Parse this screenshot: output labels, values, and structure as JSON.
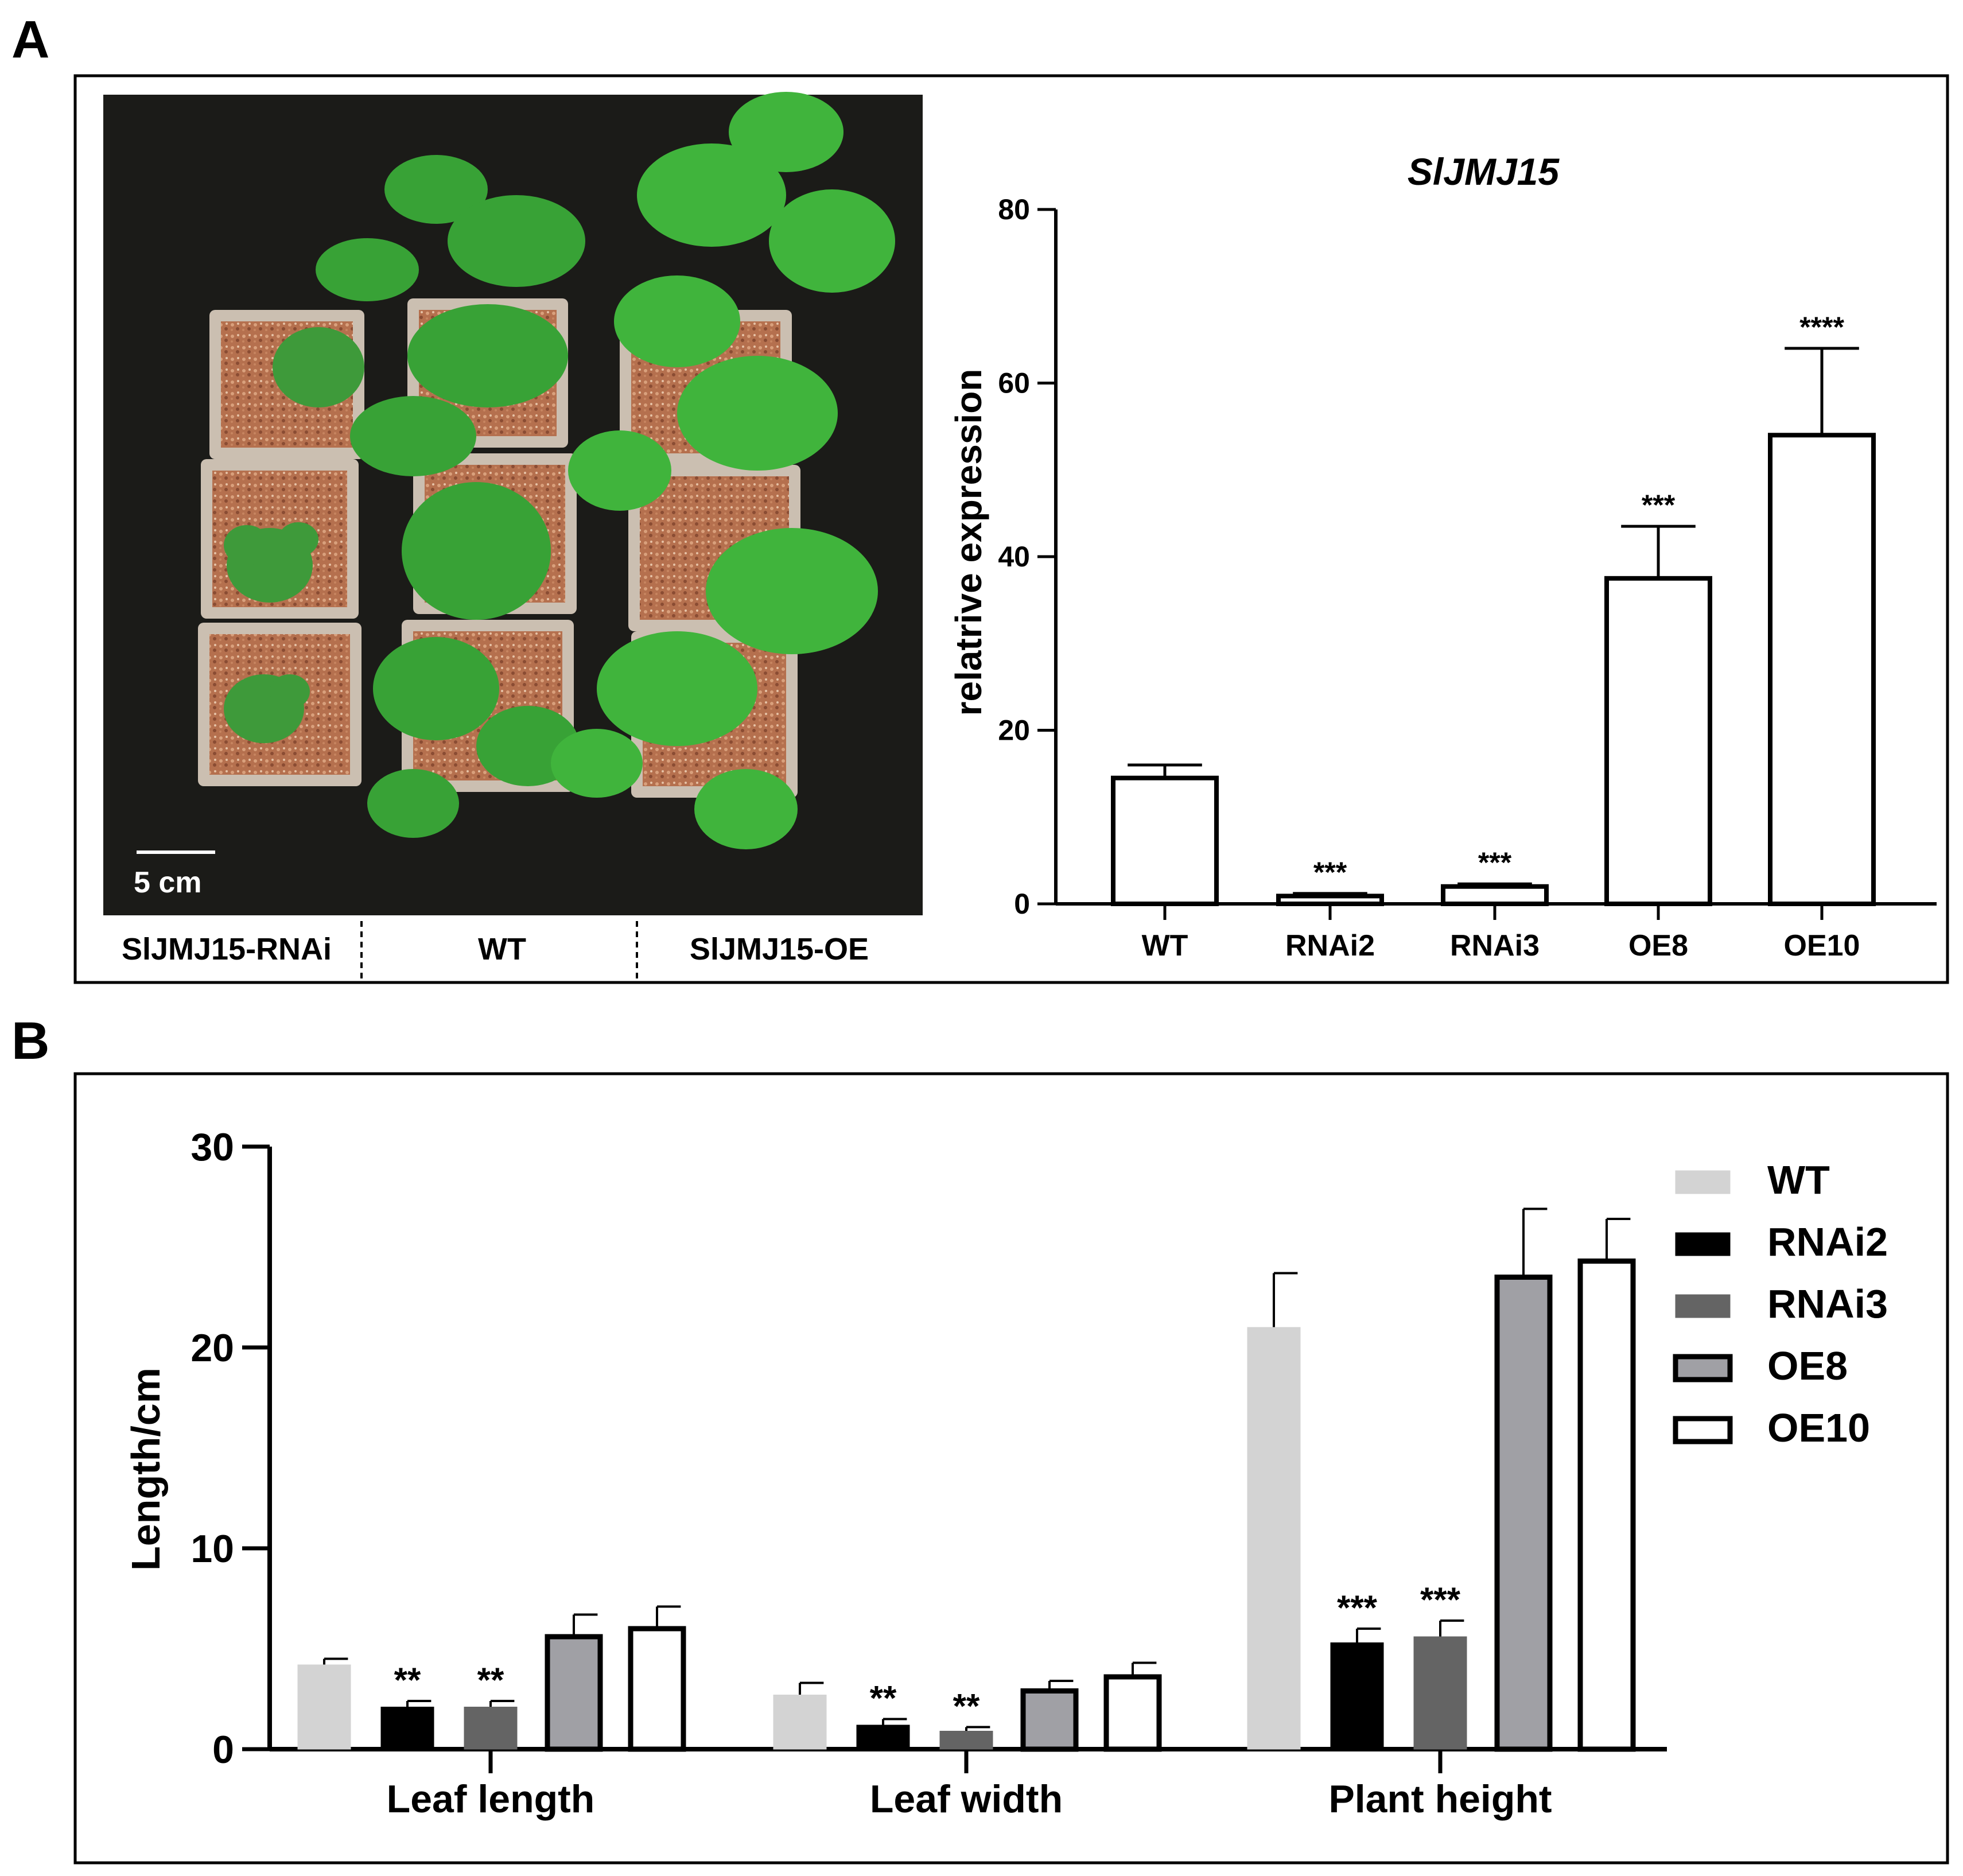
{
  "panel_a": {
    "letter": "A",
    "photo": {
      "scale_bar_label": "5 cm",
      "group_labels": [
        "SlJMJ15-RNAi",
        "WT",
        "SlJMJ15-OE"
      ]
    }
  },
  "panel_b": {
    "letter": "B"
  },
  "chart_data": [
    {
      "type": "bar",
      "title": "SlJMJ15",
      "ylabel": "relatrive expression",
      "xlabel": "",
      "ylim": [
        0,
        80
      ],
      "yticks": [
        0,
        20,
        40,
        60,
        80
      ],
      "categories": [
        "WT",
        "RNAi2",
        "RNAi3",
        "OE8",
        "OE10"
      ],
      "values": [
        14.5,
        0.9,
        2.0,
        37.5,
        54.0
      ],
      "errors": [
        1.5,
        0.3,
        0.3,
        6.0,
        10.0
      ],
      "significance": [
        "",
        "***",
        "***",
        "***",
        "****"
      ],
      "bar_fill": "#ffffff",
      "bar_stroke": "#000000",
      "grid": false
    },
    {
      "type": "bar",
      "title": "",
      "ylabel": "Length/cm",
      "xlabel": "",
      "ylim": [
        0,
        30
      ],
      "yticks": [
        0,
        10,
        20,
        30
      ],
      "categories": [
        "Leaf length",
        "Leaf width",
        "Plant height"
      ],
      "legend_position": "top-right",
      "grid": false,
      "series": [
        {
          "name": "WT",
          "values": [
            4.2,
            2.7,
            21.0
          ],
          "errors": [
            0.3,
            0.6,
            2.7
          ],
          "significance": [
            "",
            "",
            ""
          ],
          "fill": "#d3d3d3",
          "stroke": "#d3d3d3"
        },
        {
          "name": "RNAi2",
          "values": [
            2.1,
            1.2,
            5.3
          ],
          "errors": [
            0.3,
            0.3,
            0.7
          ],
          "significance": [
            "**",
            "**",
            "***"
          ],
          "fill": "#000000",
          "stroke": "#000000"
        },
        {
          "name": "RNAi3",
          "values": [
            2.1,
            0.9,
            5.6
          ],
          "errors": [
            0.3,
            0.2,
            0.8
          ],
          "significance": [
            "**",
            "**",
            "***"
          ],
          "fill": "#646464",
          "stroke": "#646464"
        },
        {
          "name": "OE8",
          "values": [
            5.6,
            2.9,
            23.5
          ],
          "errors": [
            1.1,
            0.5,
            3.4
          ],
          "significance": [
            "",
            "",
            ""
          ],
          "fill": "#a0a0a5",
          "stroke": "#000000"
        },
        {
          "name": "OE10",
          "values": [
            6.0,
            3.6,
            24.3
          ],
          "errors": [
            1.1,
            0.7,
            2.1
          ],
          "significance": [
            "",
            "",
            ""
          ],
          "fill": "#ffffff",
          "stroke": "#000000"
        }
      ]
    }
  ]
}
